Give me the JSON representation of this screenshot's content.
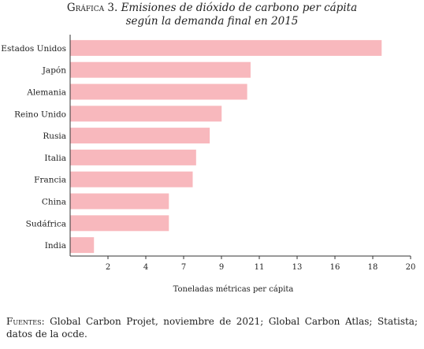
{
  "header": {
    "label": "Gráfica 3.",
    "title_line1": "Emisiones de dióxido de carbono per cápita",
    "title_line2": "según la demanda final en 2015"
  },
  "chart_data": {
    "type": "bar",
    "orientation": "horizontal",
    "categories": [
      "Estados Unidos",
      "Japón",
      "Alemania",
      "Reino Unido",
      "Rusia",
      "Italia",
      "Francia",
      "China",
      "Sudáfrica",
      "India"
    ],
    "values": [
      18.3,
      10.6,
      10.4,
      8.9,
      8.2,
      7.4,
      7.2,
      5.8,
      5.8,
      1.4
    ],
    "xlabel": "Toneladas métricas per cápita",
    "ylabel": "",
    "x_ticks": [
      "2",
      "4",
      "7",
      "9",
      "11",
      "13",
      "16",
      "18",
      "20"
    ],
    "xlim": [
      0,
      20
    ],
    "bar_color": "#f8b8bd",
    "grid": false
  },
  "footer": {
    "source_label": "Fuentes:",
    "source_text": "Global Carbon Projet, noviembre de 2021; Global Carbon Atlas; Statista; datos de la ocde."
  }
}
